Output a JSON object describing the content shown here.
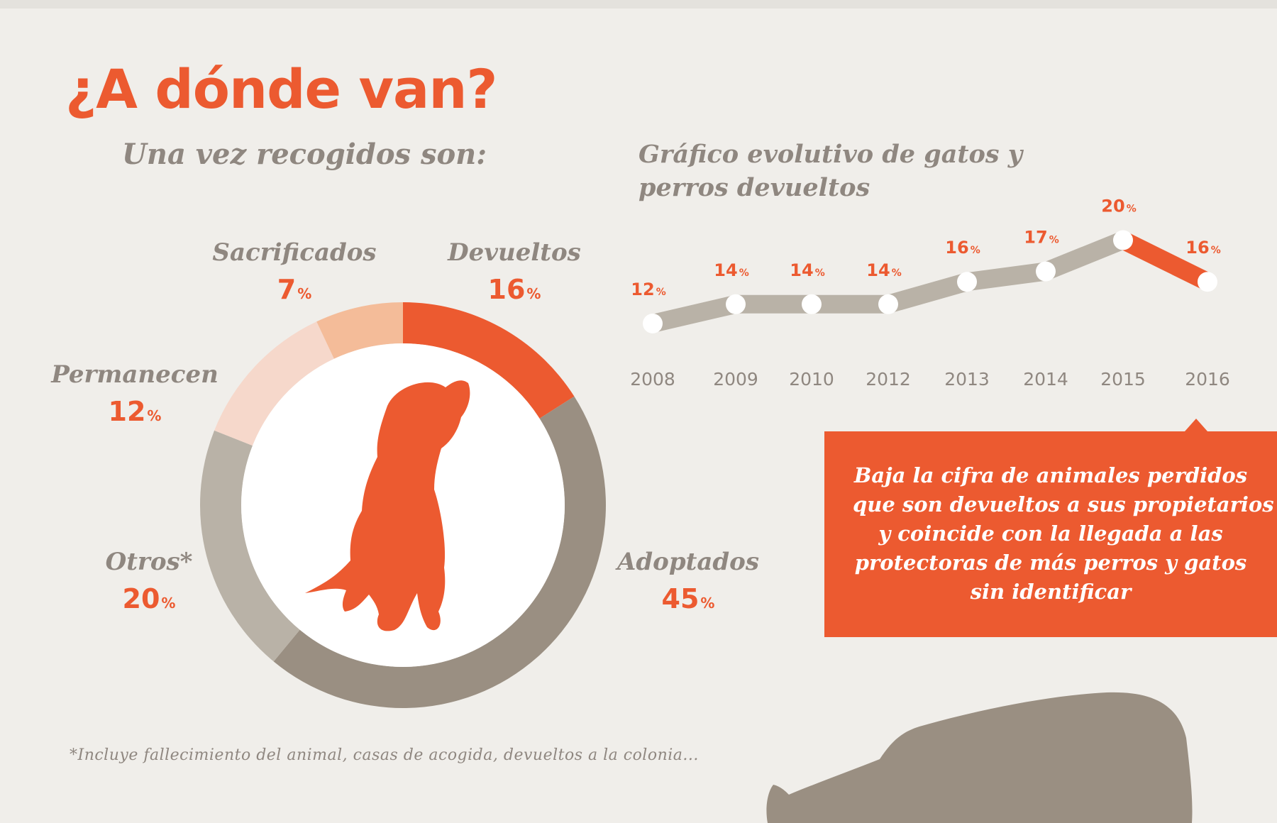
{
  "header": {
    "title": "¿A dónde van?",
    "subtitle": "Una vez recogidos son:"
  },
  "line_chart_title": "Gráfico evolutivo de gatos y perros devueltos",
  "chart_data": [
    {
      "type": "pie",
      "title": "Una vez recogidos son:",
      "slices": [
        {
          "label": "Devueltos",
          "value": 16,
          "color": "#ec5a30"
        },
        {
          "label": "Adoptados",
          "value": 45,
          "color": "#9a8f82"
        },
        {
          "label": "Otros*",
          "value": 20,
          "color": "#b9b2a7"
        },
        {
          "label": "Permanecen",
          "value": 12,
          "color": "#f6d8cb"
        },
        {
          "label": "Sacrificados",
          "value": 7,
          "color": "#f4bc99"
        }
      ],
      "unit": "%",
      "donut": true
    },
    {
      "type": "line",
      "title": "Gráfico evolutivo de gatos y perros devueltos",
      "x": [
        "2008",
        "2009",
        "2010",
        "2012",
        "2013",
        "2014",
        "2015",
        "2016"
      ],
      "series": [
        {
          "values": [
            12,
            14,
            14,
            14,
            16,
            17,
            20,
            16
          ]
        }
      ],
      "value_labels": [
        "12",
        "14",
        "14",
        "14",
        "16",
        "17",
        "20",
        "16"
      ],
      "unit": "%",
      "ylim": [
        10,
        22
      ],
      "colors": {
        "line": "#b9b2a7",
        "last_segment": "#ec5a30",
        "marker": "#ffffff"
      }
    }
  ],
  "callout": {
    "lines": [
      "Baja la cifra de animales perdidos",
      "que son devueltos a sus propietarios",
      "y coincide con la llegada a las",
      "protectoras de más perros y gatos",
      "sin identificar"
    ]
  },
  "footnote": "*Incluye fallecimiento del animal, casas de acogida, devueltos a la colonia...",
  "icons": {
    "center": "dog-silhouette-icon",
    "bottom": "cat-silhouette-icon"
  },
  "colors": {
    "accent": "#ec5a30",
    "text_gray": "#8f8780",
    "background": "#f0eeea"
  }
}
